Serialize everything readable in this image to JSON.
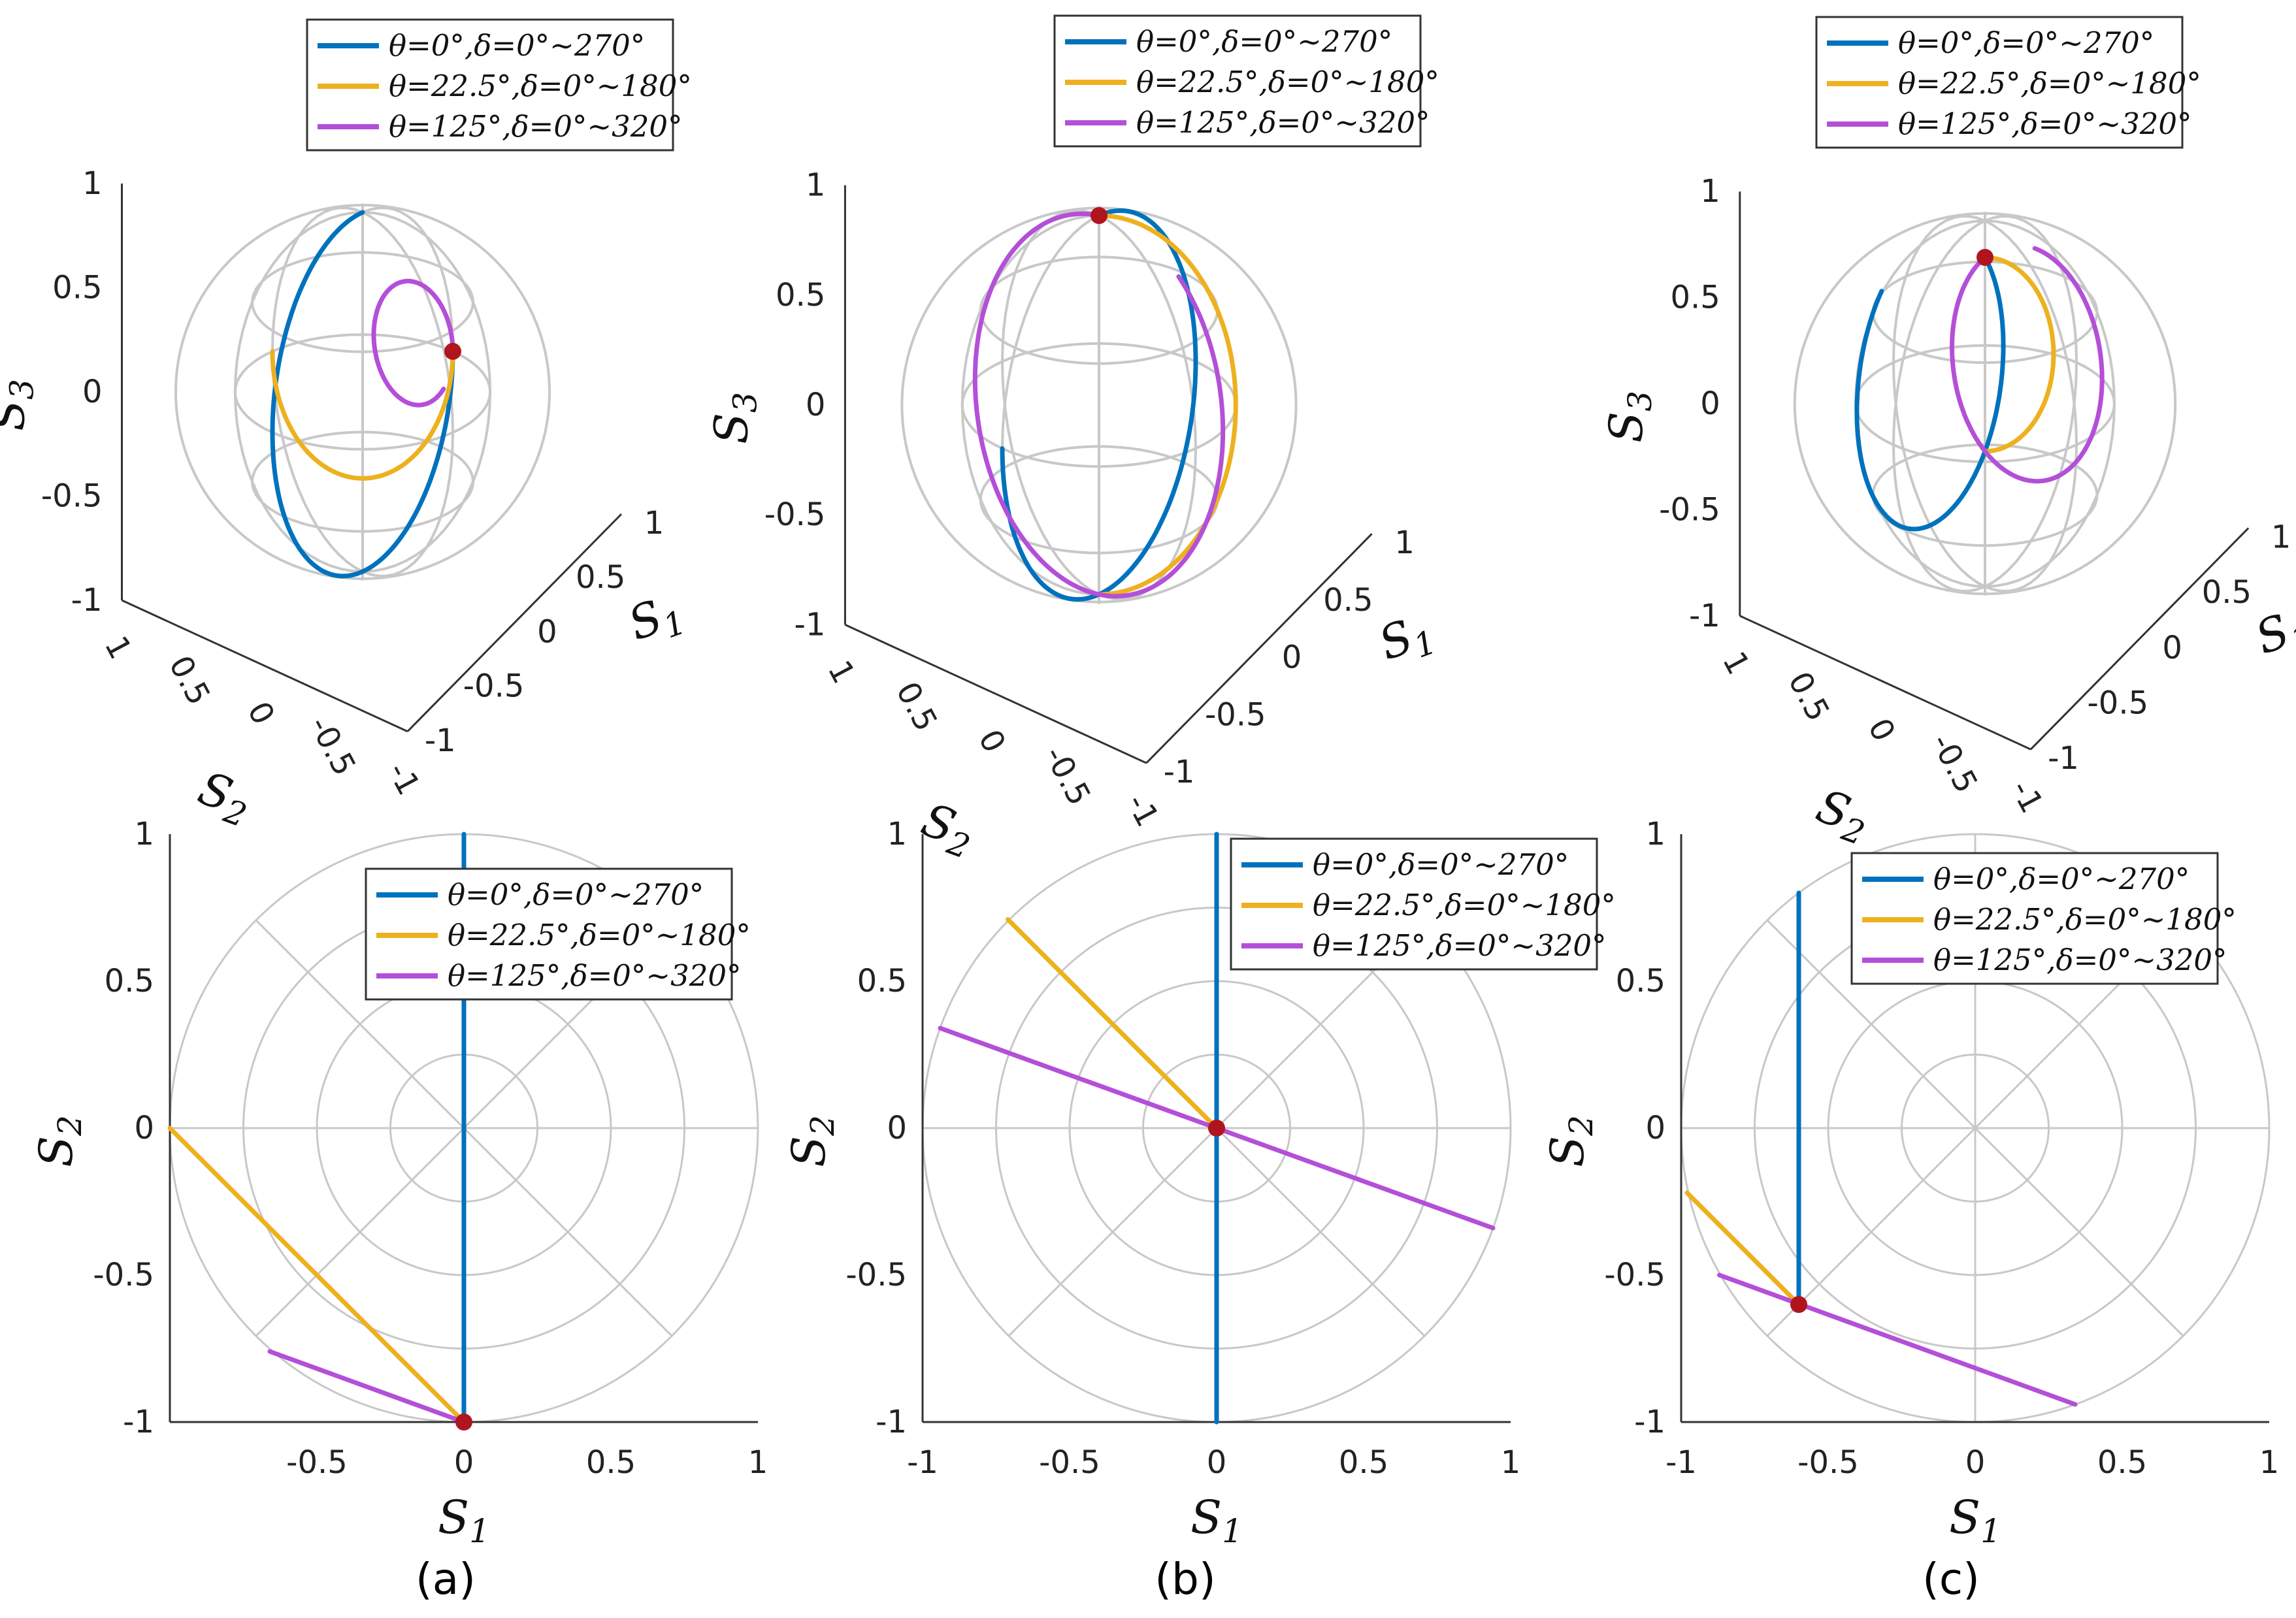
{
  "colors": {
    "series_blue": "#0072BD",
    "series_yellow": "#EDB120",
    "series_purple": "#B44FD8",
    "point": "#B0151E",
    "grid": "#C8C8C8",
    "axis": "#333333"
  },
  "chart_data": [
    {
      "panel": "a",
      "view": "sphere",
      "type": "line",
      "title": "",
      "xlabel": "S1",
      "ylabel": "S2",
      "zlabel": "S3",
      "xlim": [
        -1,
        1
      ],
      "ylim": [
        -1,
        1
      ],
      "zlim": [
        -1,
        1
      ],
      "z_ticks": [
        "1",
        "0.5",
        "0",
        "-0.5",
        "-1"
      ],
      "s2_ticks": [
        "1",
        "0.5",
        "0",
        "-0.5",
        "-1"
      ],
      "s1_ticks": [
        "-1",
        "-0.5",
        "0",
        "0.5",
        "1"
      ],
      "legend_position": "top",
      "start_point": [
        0,
        -1,
        0
      ],
      "series": [
        {
          "name": "θ=0°,δ=0°∼270°",
          "theta_deg": 0,
          "delta_range": [
            0,
            270
          ],
          "color": "#0072BD"
        },
        {
          "name": "θ=22.5°,δ=0°∼180°",
          "theta_deg": 22.5,
          "delta_range": [
            0,
            180
          ],
          "color": "#EDB120"
        },
        {
          "name": "θ=125°,δ=0°∼320°",
          "theta_deg": 125,
          "delta_range": [
            0,
            320
          ],
          "color": "#B44FD8"
        }
      ]
    },
    {
      "panel": "b",
      "view": "sphere",
      "type": "line",
      "title": "",
      "xlabel": "S1",
      "ylabel": "S2",
      "zlabel": "S3",
      "xlim": [
        -1,
        1
      ],
      "ylim": [
        -1,
        1
      ],
      "zlim": [
        -1,
        1
      ],
      "z_ticks": [
        "1",
        "0.5",
        "0",
        "-0.5",
        "-1"
      ],
      "s2_ticks": [
        "1",
        "0.5",
        "0",
        "-0.5",
        "-1"
      ],
      "s1_ticks": [
        "-1",
        "-0.5",
        "0",
        "0.5",
        "1"
      ],
      "legend_position": "top",
      "start_point": [
        0,
        0,
        1
      ],
      "series": [
        {
          "name": "θ=0°,δ=0°∼270°",
          "theta_deg": 0,
          "delta_range": [
            0,
            270
          ],
          "color": "#0072BD"
        },
        {
          "name": "θ=22.5°,δ=0°∼180°",
          "theta_deg": 22.5,
          "delta_range": [
            0,
            180
          ],
          "color": "#EDB120"
        },
        {
          "name": "θ=125°,δ=0°∼320°",
          "theta_deg": 125,
          "delta_range": [
            0,
            320
          ],
          "color": "#B44FD8"
        }
      ]
    },
    {
      "panel": "c",
      "view": "sphere",
      "type": "line",
      "title": "",
      "xlabel": "S1",
      "ylabel": "S2",
      "zlabel": "S3",
      "xlim": [
        -1,
        1
      ],
      "ylim": [
        -1,
        1
      ],
      "zlim": [
        -1,
        1
      ],
      "z_ticks": [
        "1",
        "0.5",
        "0",
        "-0.5",
        "-1"
      ],
      "s2_ticks": [
        "1",
        "0.5",
        "0",
        "-0.5",
        "-1"
      ],
      "s1_ticks": [
        "-1",
        "-0.5",
        "0",
        "0.5",
        "1"
      ],
      "legend_position": "top",
      "start_point": [
        -0.6,
        -0.6,
        0.53
      ],
      "series": [
        {
          "name": "θ=0°,δ=0°∼270°",
          "theta_deg": 0,
          "delta_range": [
            0,
            270
          ],
          "color": "#0072BD"
        },
        {
          "name": "θ=22.5°,δ=0°∼180°",
          "theta_deg": 22.5,
          "delta_range": [
            0,
            180
          ],
          "color": "#EDB120"
        },
        {
          "name": "θ=125°,δ=0°∼320°",
          "theta_deg": 125,
          "delta_range": [
            0,
            320
          ],
          "color": "#B44FD8"
        }
      ]
    },
    {
      "panel": "a",
      "view": "projection",
      "type": "line",
      "title": "",
      "xlabel": "S1",
      "ylabel": "S2",
      "xlim": [
        -1,
        1
      ],
      "ylim": [
        -1,
        1
      ],
      "x_ticks": [
        "-0.5",
        "0",
        "0.5",
        "1"
      ],
      "y_ticks": [
        "1",
        "0.5",
        "0",
        "-0.5",
        "-1"
      ],
      "legend_position": "top-right",
      "start_point": [
        0,
        -1
      ],
      "series": [
        {
          "name": "θ=0°,δ=0°∼270°",
          "color": "#0072BD",
          "points": [
            [
              0,
              -1
            ],
            [
              0,
              1
            ]
          ]
        },
        {
          "name": "θ=22.5°,δ=0°∼180°",
          "color": "#EDB120",
          "points": [
            [
              0,
              -1
            ],
            [
              -1,
              0
            ]
          ]
        },
        {
          "name": "θ=125°,δ=0°∼320°",
          "color": "#B44FD8",
          "points": [
            [
              0,
              -1
            ],
            [
              -0.66,
              -0.76
            ]
          ]
        }
      ]
    },
    {
      "panel": "b",
      "view": "projection",
      "type": "line",
      "title": "",
      "xlabel": "S1",
      "ylabel": "S2",
      "xlim": [
        -1,
        1
      ],
      "ylim": [
        -1,
        1
      ],
      "x_ticks": [
        "-1",
        "-0.5",
        "0",
        "0.5",
        "1"
      ],
      "y_ticks": [
        "1",
        "0.5",
        "0",
        "-0.5",
        "-1"
      ],
      "legend_position": "top-right",
      "start_point": [
        0,
        0
      ],
      "series": [
        {
          "name": "θ=0°,δ=0°∼270°",
          "color": "#0072BD",
          "points": [
            [
              0,
              -1
            ],
            [
              0,
              1
            ]
          ]
        },
        {
          "name": "θ=22.5°,δ=0°∼180°",
          "color": "#EDB120",
          "points": [
            [
              0,
              0
            ],
            [
              -0.71,
              0.71
            ]
          ]
        },
        {
          "name": "θ=125°,δ=0°∼320°",
          "color": "#B44FD8",
          "points": [
            [
              -0.94,
              0.34
            ],
            [
              0.94,
              -0.34
            ]
          ]
        }
      ]
    },
    {
      "panel": "c",
      "view": "projection",
      "type": "line",
      "title": "",
      "xlabel": "S1",
      "ylabel": "S2",
      "xlim": [
        -1,
        1
      ],
      "ylim": [
        -1,
        1
      ],
      "x_ticks": [
        "-1",
        "-0.5",
        "0",
        "0.5",
        "1"
      ],
      "y_ticks": [
        "1",
        "0.5",
        "0",
        "-0.5",
        "-1"
      ],
      "legend_position": "top-right",
      "start_point": [
        -0.6,
        -0.6
      ],
      "series": [
        {
          "name": "θ=0°,δ=0°∼270°",
          "color": "#0072BD",
          "points": [
            [
              -0.6,
              -0.6
            ],
            [
              -0.6,
              0.8
            ]
          ]
        },
        {
          "name": "θ=22.5°,δ=0°∼180°",
          "color": "#EDB120",
          "points": [
            [
              -0.6,
              -0.6
            ],
            [
              -0.98,
              -0.22
            ]
          ]
        },
        {
          "name": "θ=125°,δ=0°∼320°",
          "color": "#B44FD8",
          "points": [
            [
              -0.87,
              -0.5
            ],
            [
              0.34,
              -0.94
            ]
          ]
        }
      ]
    }
  ],
  "captions": [
    "(a)",
    "(b)",
    "(c)"
  ]
}
